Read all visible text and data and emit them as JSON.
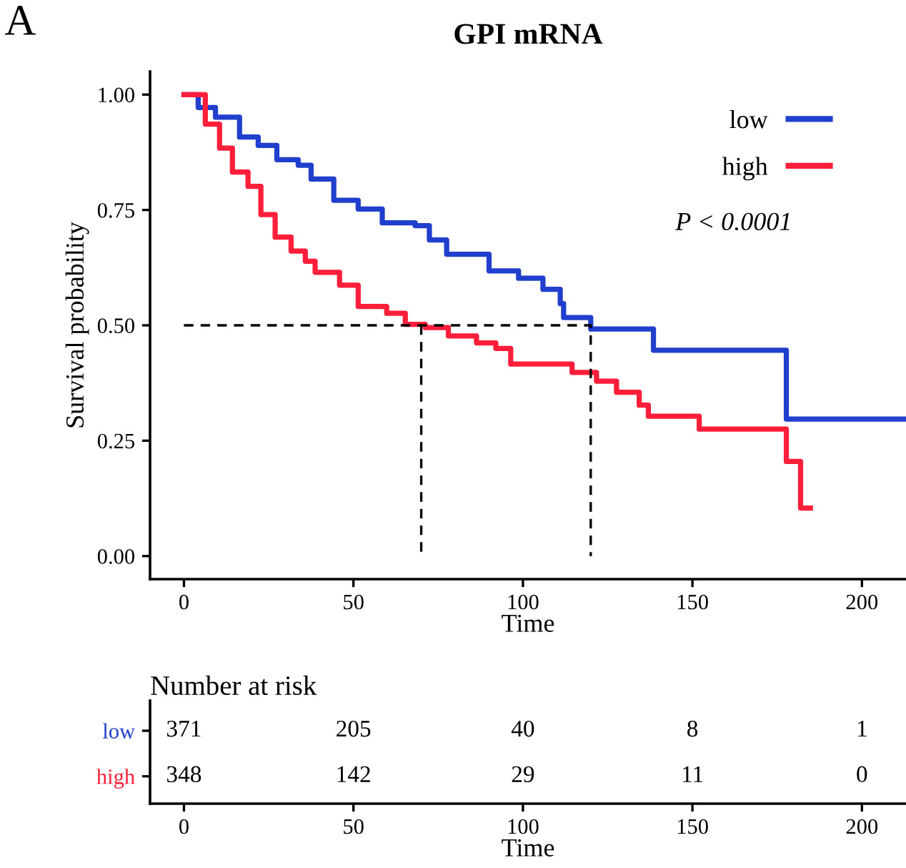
{
  "chart_data": [
    {
      "type": "step",
      "title": "GPI mRNA",
      "xlabel": "Time",
      "ylabel": "Survival probability",
      "annotations": [
        "A",
        "P < 0.0001"
      ],
      "legend": "top right",
      "xlim": [
        -10,
        213
      ],
      "xticks": [
        0,
        50,
        100,
        150,
        200
      ],
      "ylim": [
        -0.05,
        1.05
      ],
      "yticks": [
        {
          "value": 0,
          "label": "0.00"
        },
        {
          "value": 0.25,
          "label": "0.25"
        },
        {
          "value": 0.5,
          "label": "0.50"
        },
        {
          "value": 0.75,
          "label": "0.75"
        },
        {
          "value": 1,
          "label": "1.00"
        }
      ],
      "series": [
        {
          "name": "low",
          "color": "#1f3fcc",
          "x": [
            0,
            4.2,
            9.3,
            16.4,
            21.9,
            27.4,
            33.7,
            37.5,
            44.2,
            51.4,
            58.5,
            68.2,
            72.4,
            77.5,
            90,
            98.7,
            105.9,
            111,
            112,
            120,
            138.5,
            177.7,
            213
          ],
          "values": [
            1,
            0.972,
            0.951,
            0.908,
            0.89,
            0.859,
            0.847,
            0.817,
            0.771,
            0.752,
            0.722,
            0.716,
            0.685,
            0.654,
            0.618,
            0.602,
            0.578,
            0.547,
            0.517,
            0.492,
            0.446,
            0.297,
            0.297
          ]
        },
        {
          "name": "high",
          "color": "#ff1f3a",
          "x": [
            0,
            6.3,
            10.5,
            14.3,
            18.9,
            22.7,
            26.9,
            31.6,
            35.8,
            38.7,
            45.9,
            51.4,
            59.8,
            65.3,
            71.2,
            78,
            86.3,
            92,
            96.4,
            114.5,
            121.7,
            127.6,
            134.3,
            137,
            152,
            177.7,
            181.9,
            184.8
          ],
          "values": [
            1,
            0.936,
            0.884,
            0.832,
            0.801,
            0.74,
            0.691,
            0.661,
            0.639,
            0.615,
            0.587,
            0.541,
            0.526,
            0.502,
            0.495,
            0.477,
            0.462,
            0.45,
            0.416,
            0.398,
            0.379,
            0.355,
            0.327,
            0.303,
            0.275,
            0.205,
            0.104,
            0.104
          ]
        },
        {
          "type": "line",
          "color": "#000000",
          "line_style": "dashed",
          "x": [
            0,
            120,
            120
          ],
          "values": [
            0.5,
            0.5,
            0
          ]
        },
        {
          "type": "line",
          "color": "#000000",
          "line_style": "dashed",
          "x": [
            70,
            70
          ],
          "values": [
            0.5,
            0
          ]
        }
      ]
    },
    {
      "type": "heatmap",
      "title": "Number at risk",
      "xlabel": "Time",
      "categories": [
        "0",
        "50",
        "100",
        "150",
        "200"
      ],
      "y_categories": [
        "low",
        "high"
      ],
      "colors": [
        "#1f3fcc",
        "#ff1f3a"
      ],
      "data_labels": true,
      "cells": [
        [
          371,
          205,
          40,
          8,
          1
        ],
        [
          348,
          142,
          29,
          11,
          0
        ]
      ]
    }
  ]
}
